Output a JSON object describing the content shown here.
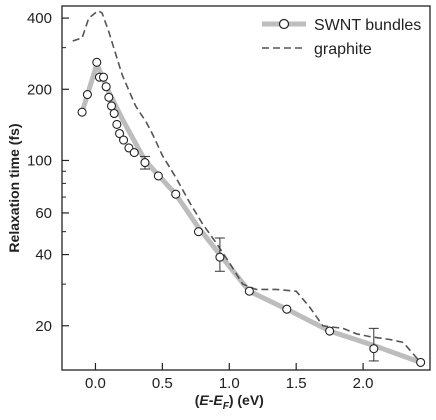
{
  "chart_data": {
    "type": "scatter",
    "xlabel_parts": [
      "(",
      "E",
      "-",
      "E",
      "F",
      ") (eV)"
    ],
    "ylabel": "Relaxation time (fs)",
    "yscale": "log",
    "xlim": [
      -0.25,
      2.5
    ],
    "ylim": [
      13,
      450
    ],
    "xticks": [
      0.0,
      0.5,
      1.0,
      1.5,
      2.0
    ],
    "xtick_labels": [
      "0.0",
      "0.5",
      "1.0",
      "1.5",
      "2.0"
    ],
    "yticks": [
      20,
      40,
      60,
      100,
      200,
      400
    ],
    "ytick_labels": [
      "20",
      "40",
      "60",
      "100",
      "200",
      "400"
    ],
    "yticks_minor": [
      30,
      50,
      70,
      80,
      90,
      300
    ],
    "legend_position": "top-right",
    "series": [
      {
        "name": "SWNT bundles",
        "style": "markers-with-thick-gray-line",
        "color": "#bdbdbd",
        "marker_color": "#222222",
        "points": [
          {
            "x": -0.1,
            "y": 160
          },
          {
            "x": -0.06,
            "y": 190
          },
          {
            "x": 0.01,
            "y": 260
          },
          {
            "x": 0.03,
            "y": 225
          },
          {
            "x": 0.06,
            "y": 225
          },
          {
            "x": 0.08,
            "y": 205
          },
          {
            "x": 0.1,
            "y": 185
          },
          {
            "x": 0.12,
            "y": 170
          },
          {
            "x": 0.14,
            "y": 158
          },
          {
            "x": 0.16,
            "y": 142
          },
          {
            "x": 0.18,
            "y": 130
          },
          {
            "x": 0.21,
            "y": 122
          },
          {
            "x": 0.25,
            "y": 113
          },
          {
            "x": 0.29,
            "y": 108
          },
          {
            "x": 0.37,
            "y": 98,
            "err": [
              92,
              104
            ]
          },
          {
            "x": 0.47,
            "y": 86
          },
          {
            "x": 0.6,
            "y": 72
          },
          {
            "x": 0.77,
            "y": 50
          },
          {
            "x": 0.93,
            "y": 39,
            "err": [
              34,
              47
            ]
          },
          {
            "x": 1.15,
            "y": 28
          },
          {
            "x": 1.43,
            "y": 23.5
          },
          {
            "x": 1.75,
            "y": 19
          },
          {
            "x": 2.08,
            "y": 16,
            "err": [
              14.2,
              19.5
            ]
          },
          {
            "x": 2.43,
            "y": 14
          }
        ],
        "fit_line": [
          {
            "x": -0.1,
            "y": 160
          },
          {
            "x": 0.01,
            "y": 255
          },
          {
            "x": 0.1,
            "y": 195
          },
          {
            "x": 0.2,
            "y": 150
          },
          {
            "x": 0.37,
            "y": 100
          },
          {
            "x": 0.6,
            "y": 72
          },
          {
            "x": 0.77,
            "y": 52
          },
          {
            "x": 0.93,
            "y": 40
          },
          {
            "x": 1.15,
            "y": 28
          },
          {
            "x": 1.43,
            "y": 23.5
          },
          {
            "x": 1.75,
            "y": 19
          },
          {
            "x": 2.08,
            "y": 16.5
          },
          {
            "x": 2.43,
            "y": 14
          }
        ]
      },
      {
        "name": "graphite",
        "style": "dashed-line",
        "color": "#555555",
        "points": [
          {
            "x": -0.17,
            "y": 320
          },
          {
            "x": -0.1,
            "y": 330
          },
          {
            "x": -0.05,
            "y": 400
          },
          {
            "x": 0.02,
            "y": 430
          },
          {
            "x": 0.05,
            "y": 420
          },
          {
            "x": 0.1,
            "y": 350
          },
          {
            "x": 0.2,
            "y": 230
          },
          {
            "x": 0.3,
            "y": 170
          },
          {
            "x": 0.38,
            "y": 145
          },
          {
            "x": 0.43,
            "y": 128
          },
          {
            "x": 0.5,
            "y": 105
          },
          {
            "x": 0.6,
            "y": 85
          },
          {
            "x": 0.7,
            "y": 67
          },
          {
            "x": 0.8,
            "y": 54
          },
          {
            "x": 0.9,
            "y": 45
          },
          {
            "x": 1.0,
            "y": 37
          },
          {
            "x": 1.1,
            "y": 30
          },
          {
            "x": 1.2,
            "y": 28.5
          },
          {
            "x": 1.35,
            "y": 28.5
          },
          {
            "x": 1.5,
            "y": 28
          },
          {
            "x": 1.6,
            "y": 24
          },
          {
            "x": 1.7,
            "y": 20
          },
          {
            "x": 1.85,
            "y": 19.5
          },
          {
            "x": 1.95,
            "y": 18.5
          },
          {
            "x": 2.05,
            "y": 18
          },
          {
            "x": 2.2,
            "y": 17.5
          },
          {
            "x": 2.3,
            "y": 17
          },
          {
            "x": 2.43,
            "y": 14
          }
        ]
      }
    ]
  }
}
